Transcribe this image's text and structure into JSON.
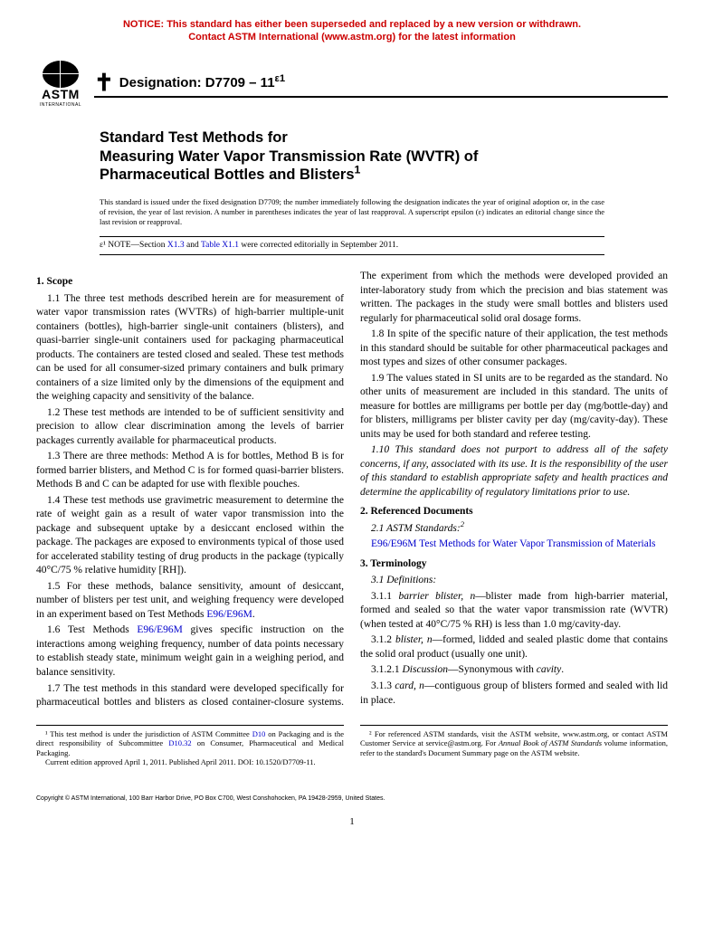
{
  "notice": {
    "color": "#cc0000",
    "line1": "NOTICE: This standard has either been superseded and replaced by a new version or withdrawn.",
    "line2": "Contact ASTM International (www.astm.org) for the latest information"
  },
  "logo": {
    "main": "ASTM",
    "sub": "INTERNATIONAL"
  },
  "designation": {
    "label": "Designation: D7709 – 11",
    "suffix": "ε1"
  },
  "title": {
    "line1": "Standard Test Methods for",
    "line2": "Measuring Water Vapor Transmission Rate (WVTR) of",
    "line3": "Pharmaceutical Bottles and Blisters",
    "footnote_marker": "1"
  },
  "issued_note": "This standard is issued under the fixed designation D7709; the number immediately following the designation indicates the year of original adoption or, in the case of revision, the year of last revision. A number in parentheses indicates the year of last reapproval. A superscript epsilon (ε) indicates an editorial change since the last revision or reapproval.",
  "epsilon_note": {
    "prefix": "ε¹ NOTE—Section ",
    "link1": "X1.3",
    "mid": " and ",
    "link2": "Table X1.1",
    "suffix": " were corrected editorially in September 2011."
  },
  "s1": {
    "head": "1. Scope"
  },
  "p1_1": "1.1 The three test methods described herein are for measurement of water vapor transmission rates (WVTRs) of high-barrier multiple-unit containers (bottles), high-barrier single-unit containers (blisters), and quasi-barrier single-unit containers used for packaging pharmaceutical products. The containers are tested closed and sealed. These test methods can be used for all consumer-sized primary containers and bulk primary containers of a size limited only by the dimensions of the equipment and the weighing capacity and sensitivity of the balance.",
  "p1_2": "1.2 These test methods are intended to be of sufficient sensitivity and precision to allow clear discrimination among the levels of barrier packages currently available for pharmaceutical products.",
  "p1_3": "1.3 There are three methods: Method A is for bottles, Method B is for formed barrier blisters, and Method C is for formed quasi-barrier blisters. Methods B and C can be adapted for use with flexible pouches.",
  "p1_4": "1.4 These test methods use gravimetric measurement to determine the rate of weight gain as a result of water vapor transmission into the package and subsequent uptake by a desiccant enclosed within the package. The packages are exposed to environments typical of those used for accelerated stability testing of drug products in the package (typically 40°C/75 % relative humidity [RH]).",
  "p1_5a": "1.5 For these methods, balance sensitivity, amount of desiccant, number of blisters per test unit, and weighing frequency were developed in an experiment based on Test Methods ",
  "p1_5link": "E96/E96M",
  "p1_5b": ".",
  "p1_6a": "1.6 Test Methods ",
  "p1_6link": "E96/E96M",
  "p1_6b": " gives specific instruction on the interactions among weighing frequency, number of data points necessary to establish steady state, minimum weight gain in a weighing period, and balance sensitivity.",
  "p1_7": "1.7 The test methods in this standard were developed specifically for pharmaceutical bottles and blisters as closed container-closure systems. The experiment from which the methods were developed provided an inter-laboratory study from which the precision and bias statement was written. The packages in the study were small bottles and blisters used regularly for pharmaceutical solid oral dosage forms.",
  "p1_8": "1.8 In spite of the specific nature of their application, the test methods in this standard should be suitable for other pharmaceutical packages and most types and sizes of other consumer packages.",
  "p1_9": "1.9 The values stated in SI units are to be regarded as the standard. No other units of measurement are included in this standard. The units of measure for bottles are milligrams per bottle per day (mg/bottle-day) and for blisters, milligrams per blister cavity per day (mg/cavity-day). These units may be used for both standard and referee testing.",
  "p1_10": "1.10 This standard does not purport to address all of the safety concerns, if any, associated with its use. It is the responsibility of the user of this standard to establish appropriate safety and health practices and determine the applicability of regulatory limitations prior to use.",
  "s2": {
    "head": "2. Referenced Documents"
  },
  "p2_1": "2.1 ASTM Standards:",
  "p2_ref_code": "E96/E96M",
  "p2_ref_title": "Test Methods for Water Vapor Transmission of Materials",
  "s3": {
    "head": "3. Terminology"
  },
  "p3_1": "3.1 Definitions:",
  "p3_1_1": "3.1.1 barrier blister, n—blister made from high-barrier material, formed and sealed so that the water vapor transmission rate (WVTR) (when tested at 40°C/75 % RH) is less than 1.0 mg/cavity-day.",
  "p3_1_2": "3.1.2 blister, n—formed, lidded and sealed plastic dome that contains the solid oral product (usually one unit).",
  "p3_1_2_1": "3.1.2.1 Discussion—Synonymous with cavity.",
  "p3_1_3": "3.1.3 card, n—contiguous group of blisters formed and sealed with lid in place.",
  "fn1a": "¹ This test method is under the jurisdiction of ASTM Committee ",
  "fn1link1": "D10",
  "fn1b": " on Packaging and is the direct responsibility of Subcommittee ",
  "fn1link2": "D10.32",
  "fn1c": " on Consumer, Pharmaceutical and Medical Packaging.",
  "fn1d": "Current edition approved April 1, 2011. Published April 2011. DOI: 10.1520/D7709-11.",
  "fn2": "² For referenced ASTM standards, visit the ASTM website, www.astm.org, or contact ASTM Customer Service at service@astm.org. For Annual Book of ASTM Standards volume information, refer to the standard's Document Summary page on the ASTM website.",
  "copyright": "Copyright © ASTM International, 100 Barr Harbor Drive, PO Box C700, West Conshohocken, PA 19428-2959, United States.",
  "pagenum": "1",
  "link_color": "#0000cc"
}
